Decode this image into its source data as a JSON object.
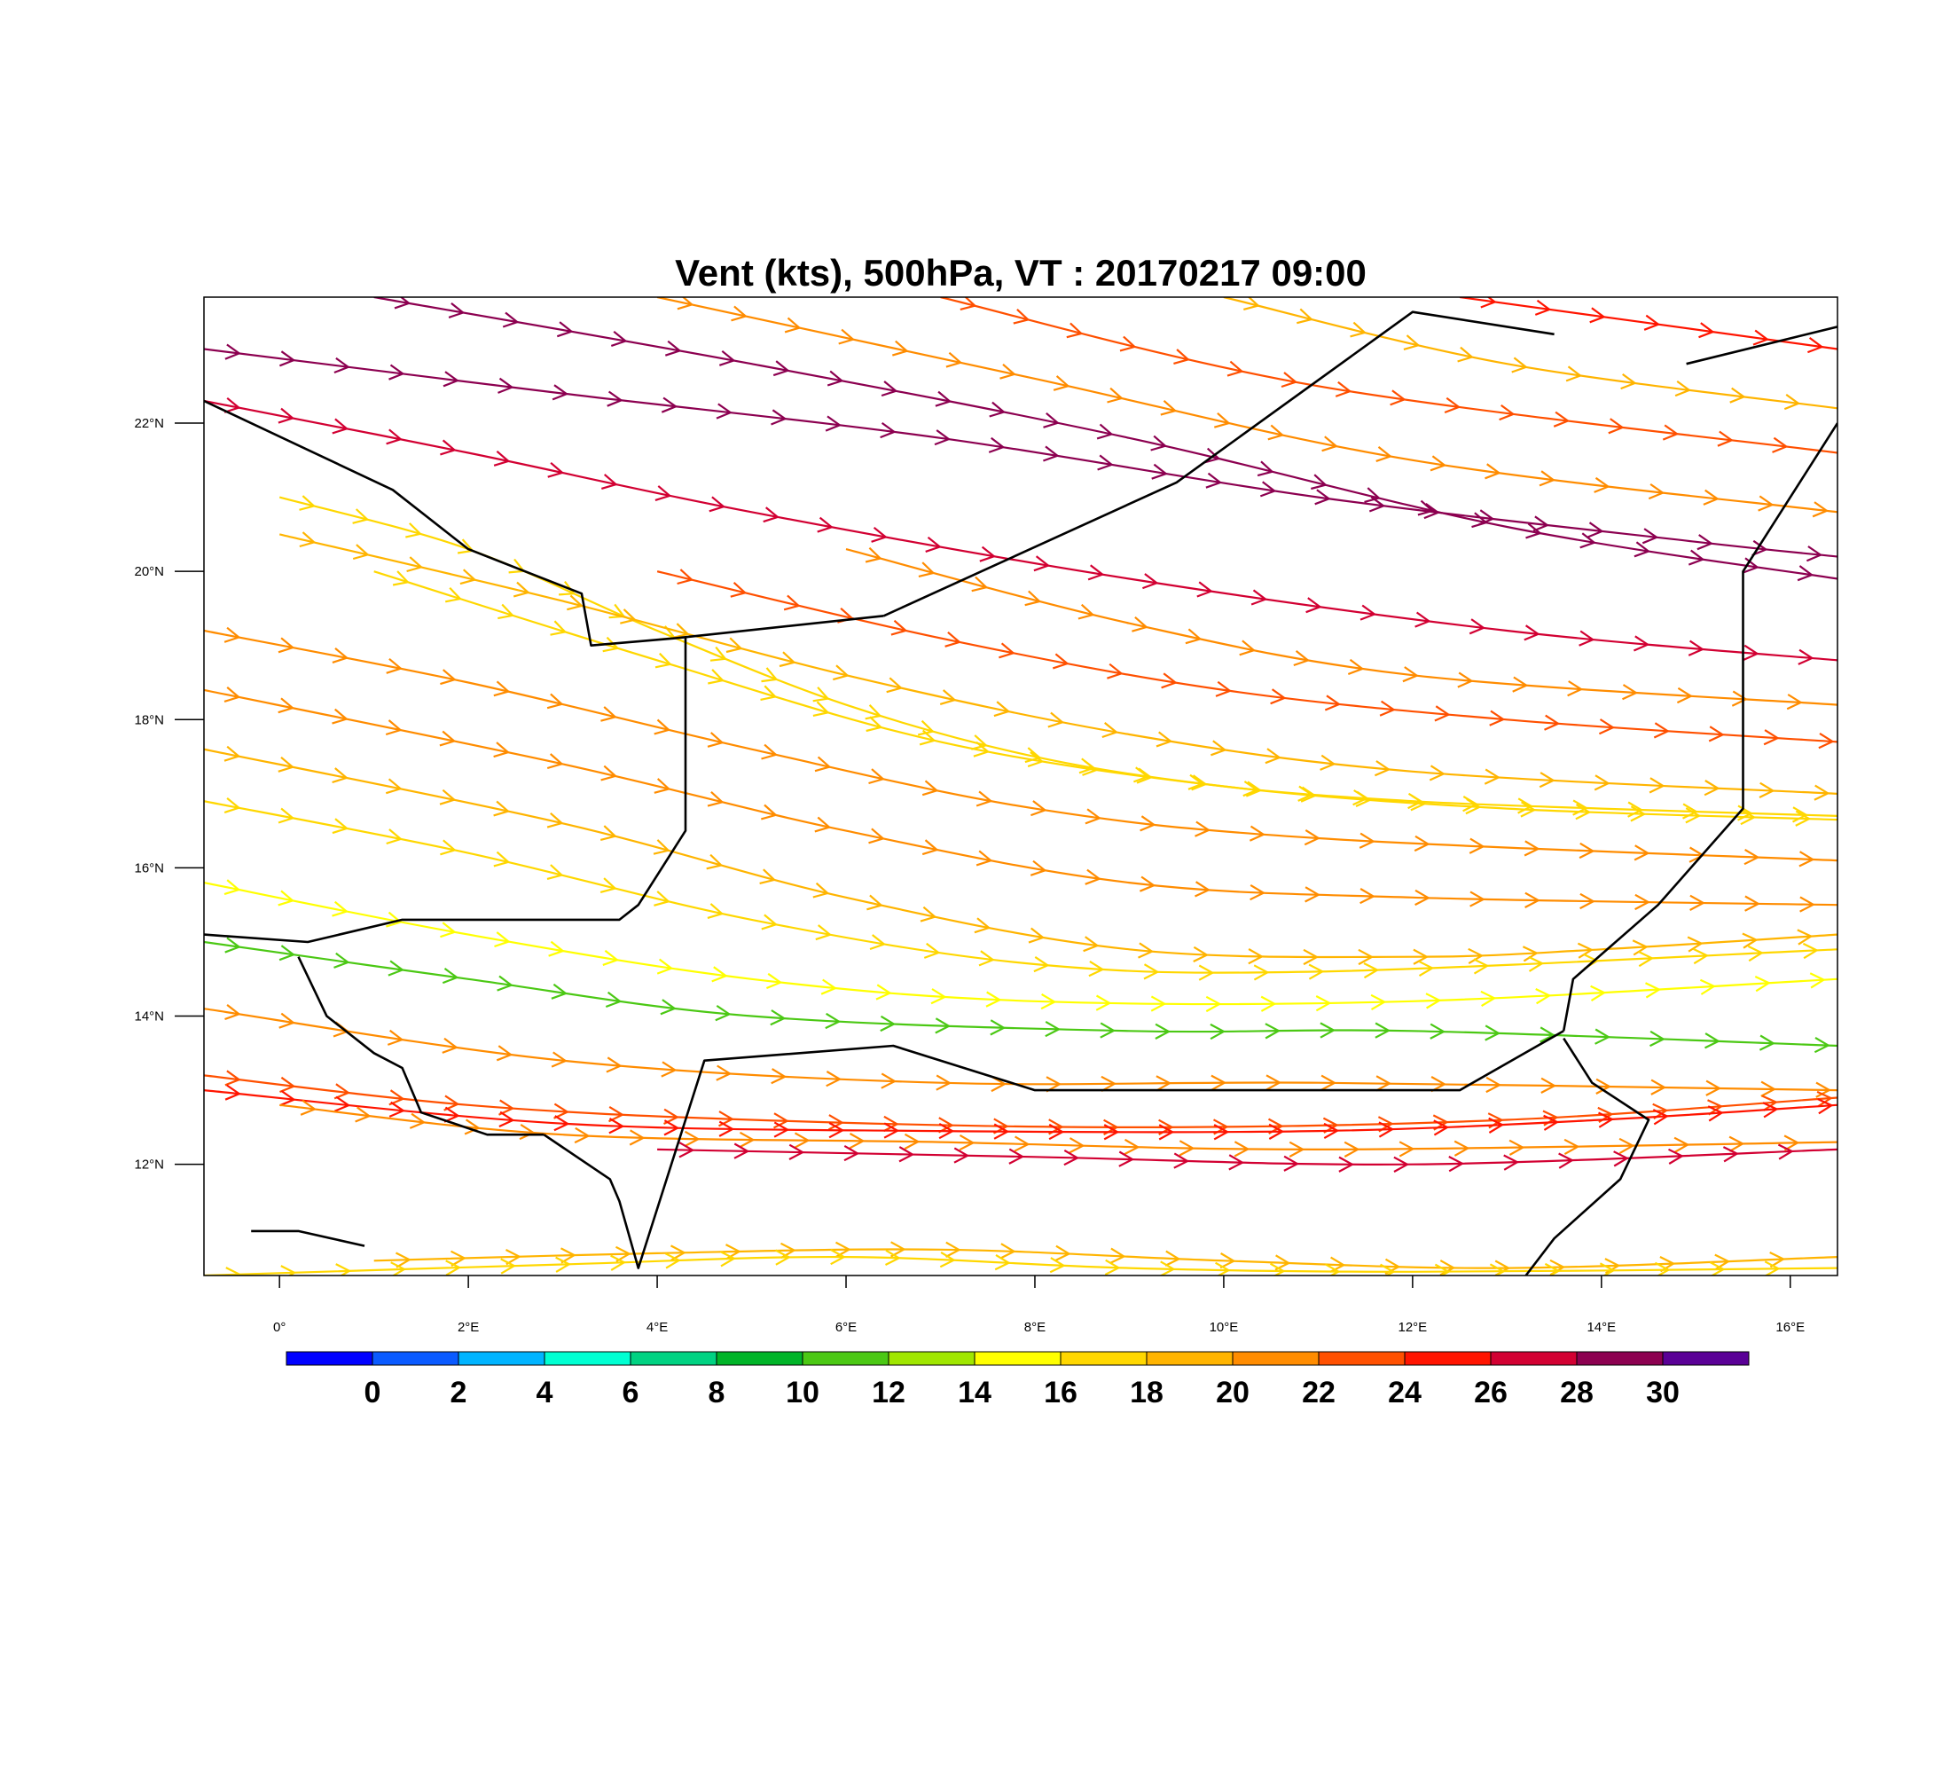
{
  "chart_data": {
    "type": "streamline-map",
    "title": "Vent (kts), 500hPa, VT : 20170217  09:00",
    "variable": "Vent (kts)",
    "level": "500hPa",
    "valid_time": "20170217  09:00",
    "lon_range": [
      -0.8,
      16.5
    ],
    "lat_range": [
      10.5,
      23.7
    ],
    "x_ticks": [
      {
        "value": 0,
        "label": "0°"
      },
      {
        "value": 2,
        "label": "2°E"
      },
      {
        "value": 4,
        "label": "4°E"
      },
      {
        "value": 6,
        "label": "6°E"
      },
      {
        "value": 8,
        "label": "8°E"
      },
      {
        "value": 10,
        "label": "10°E"
      },
      {
        "value": 12,
        "label": "12°E"
      },
      {
        "value": 14,
        "label": "14°E"
      },
      {
        "value": 16,
        "label": "16°E"
      }
    ],
    "y_ticks": [
      {
        "value": 12,
        "label": "12°N"
      },
      {
        "value": 14,
        "label": "14°N"
      },
      {
        "value": 16,
        "label": "16°N"
      },
      {
        "value": 18,
        "label": "18°N"
      },
      {
        "value": 20,
        "label": "20°N"
      },
      {
        "value": 22,
        "label": "22°N"
      }
    ],
    "colorbar": {
      "colors": [
        "#0000ff",
        "#0a5aff",
        "#00b4ff",
        "#00ffd2",
        "#00d282",
        "#00b428",
        "#4bc814",
        "#a0e600",
        "#ffff00",
        "#ffd700",
        "#ffb400",
        "#ff8c00",
        "#ff5000",
        "#ff1400",
        "#d20032",
        "#8c0050",
        "#5a0096"
      ],
      "labels": [
        "0",
        "2",
        "4",
        "6",
        "8",
        "10",
        "12",
        "14",
        "16",
        "18",
        "20",
        "22",
        "24",
        "26",
        "28",
        "30"
      ]
    },
    "streamlines": [
      {
        "name": "nw-1",
        "speed": 31,
        "points": [
          [
            -0.8,
            23.0
          ],
          [
            3,
            22.4
          ],
          [
            7,
            21.8
          ],
          [
            11,
            21.0
          ],
          [
            15,
            20.4
          ],
          [
            16.5,
            20.2
          ]
        ]
      },
      {
        "name": "nw-2",
        "speed": 30,
        "points": [
          [
            1,
            23.7
          ],
          [
            5,
            22.8
          ],
          [
            9,
            21.8
          ],
          [
            13,
            20.6
          ],
          [
            16.5,
            19.9
          ]
        ]
      },
      {
        "name": "nw-3",
        "speed": 29,
        "points": [
          [
            -0.8,
            22.3
          ],
          [
            2,
            21.6
          ],
          [
            5,
            20.8
          ],
          [
            9,
            19.9
          ],
          [
            13,
            19.2
          ],
          [
            16.5,
            18.8
          ]
        ]
      },
      {
        "name": "n-1",
        "speed": 23,
        "points": [
          [
            4,
            23.7
          ],
          [
            8,
            22.6
          ],
          [
            12,
            21.5
          ],
          [
            16.5,
            20.8
          ]
        ]
      },
      {
        "name": "n-2",
        "speed": 25,
        "points": [
          [
            7,
            23.7
          ],
          [
            11,
            22.5
          ],
          [
            16.5,
            21.6
          ]
        ]
      },
      {
        "name": "n-3",
        "speed": 21,
        "points": [
          [
            10,
            23.7
          ],
          [
            13,
            22.8
          ],
          [
            16.5,
            22.2
          ]
        ]
      },
      {
        "name": "ne-1",
        "speed": 26,
        "points": [
          [
            12.5,
            23.7
          ],
          [
            16.5,
            23.0
          ]
        ]
      },
      {
        "name": "jet-n1",
        "speed": 18,
        "points": [
          [
            0,
            21.0
          ],
          [
            2,
            20.3
          ],
          [
            4,
            19.2
          ],
          [
            6,
            18.2
          ],
          [
            8,
            17.5
          ],
          [
            10,
            17.1
          ],
          [
            12,
            16.9
          ],
          [
            14,
            16.8
          ],
          [
            16.5,
            16.7
          ]
        ]
      },
      {
        "name": "jet-n2",
        "speed": 20,
        "points": [
          [
            0,
            20.5
          ],
          [
            3,
            19.6
          ],
          [
            6,
            18.6
          ],
          [
            9,
            17.8
          ],
          [
            12,
            17.3
          ],
          [
            16.5,
            17.0
          ]
        ]
      },
      {
        "name": "jet-n3",
        "speed": 19,
        "points": [
          [
            1,
            20.0
          ],
          [
            4,
            18.8
          ],
          [
            7,
            17.7
          ],
          [
            10,
            17.1
          ],
          [
            13,
            16.8
          ],
          [
            16.5,
            16.65
          ]
        ]
      },
      {
        "name": "jet-n4",
        "speed": 24,
        "points": [
          [
            4,
            20.0
          ],
          [
            7,
            19.1
          ],
          [
            10,
            18.4
          ],
          [
            13,
            18.0
          ],
          [
            16.5,
            17.7
          ]
        ]
      },
      {
        "name": "jet-n5",
        "speed": 22,
        "points": [
          [
            6,
            20.3
          ],
          [
            9,
            19.3
          ],
          [
            12,
            18.6
          ],
          [
            16.5,
            18.2
          ]
        ]
      },
      {
        "name": "mid-1",
        "speed": 23,
        "points": [
          [
            -0.8,
            19.2
          ],
          [
            2,
            18.5
          ],
          [
            5,
            17.6
          ],
          [
            8,
            16.8
          ],
          [
            11,
            16.4
          ],
          [
            16.5,
            16.1
          ]
        ]
      },
      {
        "name": "mid-2",
        "speed": 22,
        "points": [
          [
            -0.8,
            18.4
          ],
          [
            3,
            17.4
          ],
          [
            6,
            16.5
          ],
          [
            9,
            15.8
          ],
          [
            12,
            15.6
          ],
          [
            16.5,
            15.5
          ]
        ]
      },
      {
        "name": "mid-3",
        "speed": 20,
        "points": [
          [
            -0.8,
            17.6
          ],
          [
            3,
            16.6
          ],
          [
            6,
            15.6
          ],
          [
            9,
            14.9
          ],
          [
            12,
            14.8
          ],
          [
            14,
            14.9
          ],
          [
            16.5,
            15.1
          ]
        ]
      },
      {
        "name": "mid-4",
        "speed": 18,
        "points": [
          [
            -0.8,
            16.9
          ],
          [
            2,
            16.2
          ],
          [
            5,
            15.3
          ],
          [
            8,
            14.7
          ],
          [
            11,
            14.6
          ],
          [
            16.5,
            14.9
          ]
        ]
      },
      {
        "name": "mid-5",
        "speed": 16,
        "points": [
          [
            -0.8,
            15.8
          ],
          [
            2,
            15.1
          ],
          [
            5,
            14.5
          ],
          [
            8,
            14.2
          ],
          [
            12,
            14.2
          ],
          [
            16.5,
            14.5
          ]
        ]
      },
      {
        "name": "mid-6",
        "speed": 13,
        "points": [
          [
            -0.8,
            15.0
          ],
          [
            2,
            14.5
          ],
          [
            5,
            14.0
          ],
          [
            9,
            13.8
          ],
          [
            12,
            13.8
          ],
          [
            16.5,
            13.6
          ]
        ]
      },
      {
        "name": "mid-7",
        "speed": 23,
        "points": [
          [
            -0.8,
            14.1
          ],
          [
            3,
            13.4
          ],
          [
            7,
            13.1
          ],
          [
            11,
            13.1
          ],
          [
            16.5,
            13.0
          ]
        ]
      },
      {
        "name": "jet-s1",
        "speed": 25,
        "points": [
          [
            -0.8,
            13.2
          ],
          [
            2,
            12.8
          ],
          [
            5,
            12.6
          ],
          [
            9,
            12.5
          ],
          [
            13,
            12.6
          ],
          [
            16.5,
            12.9
          ]
        ]
      },
      {
        "name": "jet-s2",
        "speed": 27,
        "points": [
          [
            -0.8,
            13.0
          ],
          [
            3,
            12.55
          ],
          [
            7,
            12.45
          ],
          [
            11,
            12.45
          ],
          [
            14,
            12.6
          ],
          [
            16.5,
            12.8
          ]
        ]
      },
      {
        "name": "jet-s3",
        "speed": 23,
        "points": [
          [
            0,
            12.8
          ],
          [
            3,
            12.4
          ],
          [
            7,
            12.3
          ],
          [
            11,
            12.2
          ],
          [
            16.5,
            12.3
          ]
        ]
      },
      {
        "name": "jet-s4",
        "speed": 28,
        "points": [
          [
            4,
            12.2
          ],
          [
            8,
            12.1
          ],
          [
            12,
            12.0
          ],
          [
            16.5,
            12.2
          ]
        ]
      },
      {
        "name": "s-1",
        "speed": 20,
        "points": [
          [
            1,
            10.7
          ],
          [
            4,
            10.8
          ],
          [
            7,
            10.85
          ],
          [
            10,
            10.7
          ],
          [
            13,
            10.6
          ],
          [
            16.5,
            10.75
          ]
        ]
      },
      {
        "name": "s-2",
        "speed": 19,
        "points": [
          [
            -0.8,
            10.5
          ],
          [
            3,
            10.65
          ],
          [
            6,
            10.75
          ],
          [
            9,
            10.6
          ],
          [
            12,
            10.55
          ],
          [
            16.5,
            10.6
          ]
        ]
      }
    ],
    "borders": [
      {
        "name": "algeria-niger",
        "points": [
          [
            6.4,
            19.4
          ],
          [
            9.5,
            21.2
          ],
          [
            12.0,
            23.5
          ],
          [
            13.5,
            23.2
          ]
        ]
      },
      {
        "name": "algeria-mali",
        "points": [
          [
            -0.8,
            22.3
          ],
          [
            1.2,
            21.1
          ],
          [
            2.0,
            20.3
          ],
          [
            3.2,
            19.7
          ],
          [
            3.3,
            19.0
          ],
          [
            4.2,
            19.1
          ],
          [
            6.4,
            19.4
          ]
        ]
      },
      {
        "name": "mali-niger",
        "points": [
          [
            4.3,
            19.1
          ],
          [
            4.3,
            16.5
          ],
          [
            3.8,
            15.5
          ],
          [
            3.6,
            15.3
          ],
          [
            1.3,
            15.3
          ],
          [
            0.3,
            15.0
          ],
          [
            -0.8,
            15.1
          ]
        ]
      },
      {
        "name": "niger-nigeria",
        "points": [
          [
            2.8,
            12.4
          ],
          [
            3.5,
            11.8
          ],
          [
            3.6,
            11.5
          ],
          [
            3.8,
            10.6
          ],
          [
            4.5,
            13.4
          ],
          [
            6.5,
            13.6
          ],
          [
            8.0,
            13.0
          ],
          [
            10.0,
            13.0
          ],
          [
            12.5,
            13.0
          ],
          [
            13.6,
            13.8
          ]
        ]
      },
      {
        "name": "niger-chad",
        "points": [
          [
            13.6,
            13.8
          ],
          [
            13.7,
            14.5
          ],
          [
            14.6,
            15.5
          ],
          [
            15.5,
            16.8
          ],
          [
            15.5,
            20.0
          ],
          [
            16.0,
            21.0
          ],
          [
            16.5,
            22.0
          ]
        ]
      },
      {
        "name": "niger-burkina",
        "points": [
          [
            0.2,
            14.8
          ],
          [
            0.5,
            14.0
          ],
          [
            1.0,
            13.5
          ],
          [
            1.3,
            13.3
          ],
          [
            1.5,
            12.7
          ],
          [
            2.2,
            12.4
          ],
          [
            2.8,
            12.4
          ]
        ]
      },
      {
        "name": "libya-chad",
        "points": [
          [
            14.9,
            22.8
          ],
          [
            16.5,
            23.3
          ]
        ]
      },
      {
        "name": "nigeria-cameroon",
        "points": [
          [
            13.6,
            13.7
          ],
          [
            13.9,
            13.1
          ],
          [
            14.5,
            12.6
          ],
          [
            14.2,
            11.8
          ],
          [
            13.5,
            11.0
          ],
          [
            13.2,
            10.5
          ]
        ]
      },
      {
        "name": "benin-togo",
        "points": [
          [
            0.9,
            10.9
          ],
          [
            0.2,
            11.1
          ],
          [
            -0.3,
            11.1
          ]
        ]
      }
    ]
  }
}
